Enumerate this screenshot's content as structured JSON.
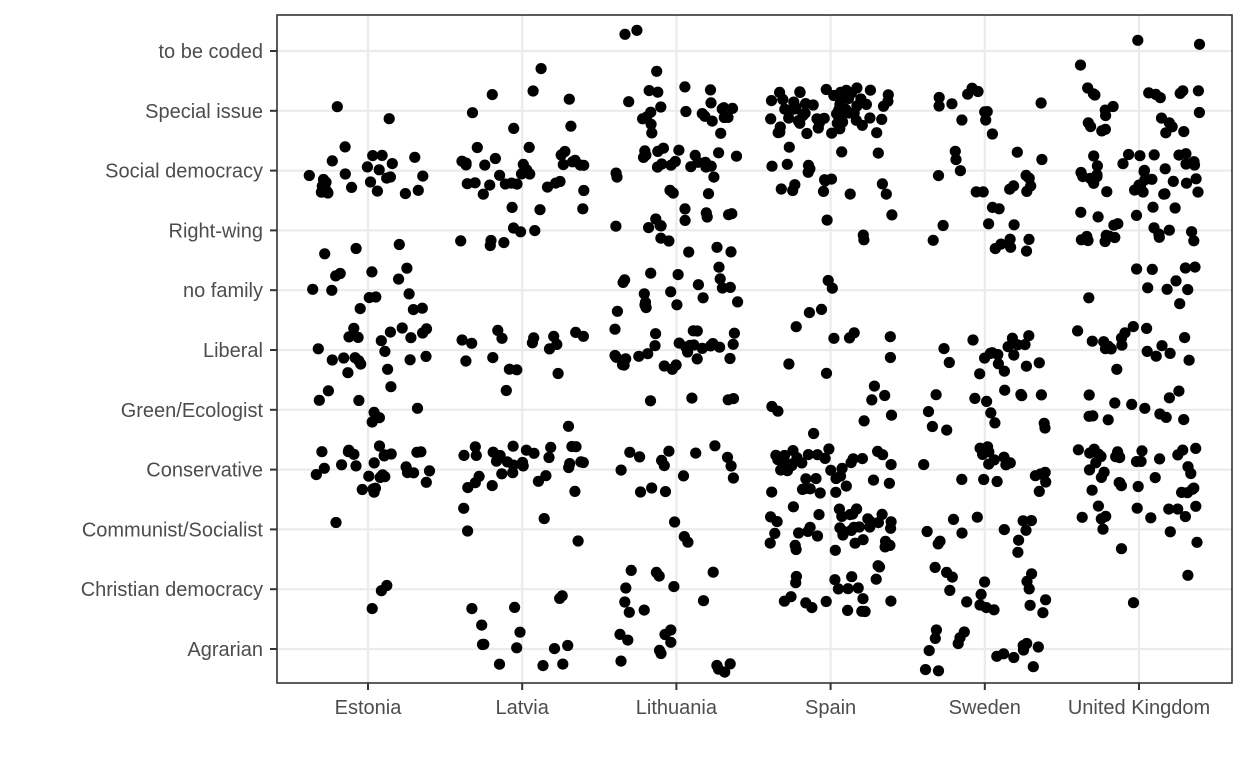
{
  "chart_data": {
    "type": "scatter",
    "title": "",
    "xlabel": "",
    "ylabel": "",
    "grid": true,
    "legend": "none",
    "point_color": "#000000",
    "jitter": {
      "width": 0.4,
      "height": 0.4
    },
    "x_categories": [
      "Estonia",
      "Latvia",
      "Lithuania",
      "Spain",
      "Sweden",
      "United Kingdom"
    ],
    "y_categories": [
      "Agrarian",
      "Christian democracy",
      "Communist/Socialist",
      "Conservative",
      "Green/Ecologist",
      "Liberal",
      "no family",
      "Right-wing",
      "Social democracy",
      "Special issue",
      "to be coded"
    ],
    "counts": [
      [
        0,
        3,
        1,
        28,
        8,
        20,
        13,
        3,
        25,
        2,
        0
      ],
      [
        10,
        4,
        4,
        30,
        2,
        16,
        0,
        10,
        30,
        6,
        1
      ],
      [
        12,
        10,
        3,
        15,
        4,
        28,
        18,
        16,
        24,
        22,
        3
      ],
      [
        0,
        20,
        36,
        36,
        8,
        8,
        4,
        4,
        18,
        60,
        0
      ],
      [
        16,
        16,
        12,
        18,
        14,
        18,
        0,
        12,
        14,
        12,
        0
      ],
      [
        0,
        2,
        14,
        32,
        12,
        18,
        10,
        20,
        34,
        22,
        3
      ]
    ]
  }
}
